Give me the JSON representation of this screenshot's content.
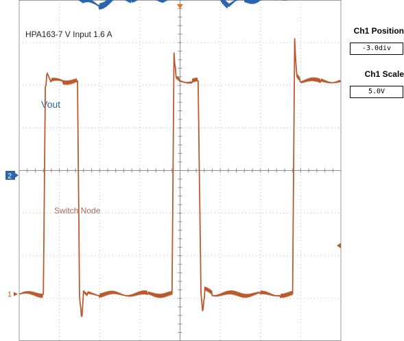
{
  "chart_data": {
    "type": "line",
    "title": "HPA163-7 V Input 1.6 A",
    "grid": true,
    "channel_markers": [
      "2",
      "1"
    ],
    "series": [
      {
        "name": "Vout",
        "color": "#2a64ab",
        "x": [
          0.0,
          0.4,
          0.8,
          1.2,
          1.6,
          2.0,
          2.4,
          2.8,
          3.2,
          3.6,
          4.0,
          4.4,
          4.8,
          5.2,
          5.6,
          6.0,
          6.4,
          6.8,
          7.2,
          7.6,
          8.0
        ],
        "y": [
          3.4,
          3.5,
          3.8,
          3.75,
          3.35,
          3.3,
          3.45,
          3.45,
          3.5,
          3.45,
          3.6,
          3.85,
          3.7,
          3.3,
          3.4,
          3.45,
          3.45,
          3.5,
          3.5,
          3.8,
          3.6
        ]
      },
      {
        "name": "Switch Node",
        "color": "#b95a2e",
        "x": [
          0.0,
          0.6,
          0.65,
          0.7,
          0.8,
          1.1,
          1.45,
          1.5,
          1.56,
          1.6,
          1.7,
          2.0,
          3.2,
          3.8,
          3.85,
          3.9,
          4.0,
          4.3,
          4.45,
          4.52,
          4.56,
          4.62,
          4.8,
          6.0,
          6.5,
          6.8,
          6.85,
          6.9,
          7.0,
          7.5,
          8.0
        ],
        "y": [
          0.0,
          0.0,
          4.8,
          5.2,
          5.0,
          5.0,
          5.0,
          0.0,
          -0.6,
          0.1,
          0.0,
          0.0,
          0.0,
          0.0,
          5.6,
          5.1,
          5.0,
          5.0,
          5.0,
          0.0,
          -0.4,
          0.1,
          0.0,
          0.0,
          0.0,
          0.0,
          6.0,
          5.1,
          5.0,
          5.0,
          5.0
        ]
      }
    ]
  },
  "side_panel": {
    "position_label": "Ch1 Position",
    "position_value": "-3.0div",
    "scale_label": "Ch1 Scale",
    "scale_value": "5.0V"
  }
}
